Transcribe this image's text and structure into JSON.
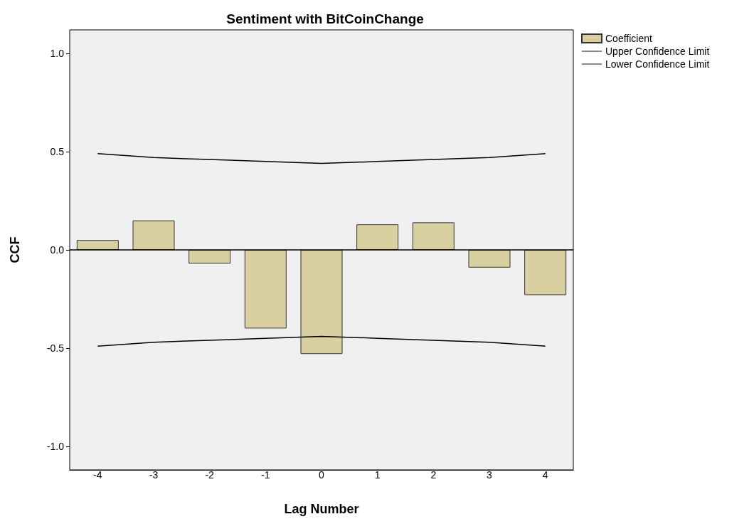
{
  "chart_data": {
    "type": "bar",
    "title": "Sentiment with BitCoinChange",
    "xlabel": "Lag Number",
    "ylabel": "CCF",
    "categories": [
      "-4",
      "-3",
      "-2",
      "-1",
      "0",
      "1",
      "2",
      "3",
      "4"
    ],
    "series": [
      {
        "name": "Coefficient",
        "color": "#d8d0a0",
        "values": [
          0.05,
          0.15,
          -0.07,
          -0.4,
          -0.53,
          0.13,
          0.14,
          -0.09,
          -0.23
        ]
      },
      {
        "name": "Upper Confidence Limit",
        "type": "line",
        "color": "#000000",
        "values": [
          0.49,
          0.47,
          0.46,
          0.45,
          0.44,
          0.45,
          0.46,
          0.47,
          0.49
        ]
      },
      {
        "name": "Lower Confidence Limit",
        "type": "line",
        "color": "#000000",
        "values": [
          -0.49,
          -0.47,
          -0.46,
          -0.45,
          -0.44,
          -0.45,
          -0.46,
          -0.47,
          -0.49
        ]
      }
    ],
    "ylim": [
      -1.12,
      1.12
    ],
    "yticks": [
      {
        "value": -1,
        "label": "-1.0"
      },
      {
        "value": -0.5,
        "label": "-0.5"
      },
      {
        "value": 0,
        "label": "0.0"
      },
      {
        "value": 0.5,
        "label": "0.5"
      },
      {
        "value": 1,
        "label": "1.0"
      }
    ],
    "ref_lines": [
      {
        "axis": "y",
        "value": 0,
        "color": "#000000"
      }
    ],
    "grid": false,
    "legend": "top right",
    "marker": "none",
    "line_style": "solid"
  }
}
